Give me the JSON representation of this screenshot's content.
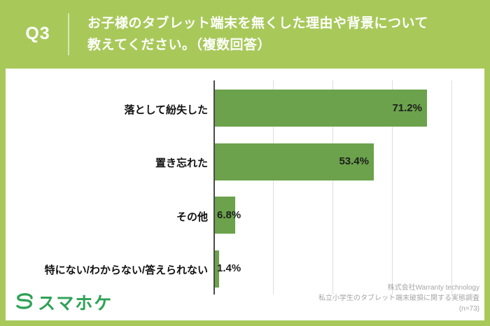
{
  "header": {
    "q_label": "Q3",
    "title_line1": "お子様のタブレット端末を無くした理由や背景について",
    "title_line2": "教えてください。（複数回答）"
  },
  "chart_data": {
    "type": "bar",
    "orientation": "horizontal",
    "title": "お子様のタブレット端末を無くした理由や背景について教えてください。（複数回答）",
    "categories": [
      "落として紛失した",
      "置き忘れた",
      "その他",
      "特にない/わからない/答えられない"
    ],
    "values": [
      71.2,
      53.4,
      6.8,
      1.4
    ],
    "value_labels": [
      "71.2%",
      "53.4%",
      "6.8%",
      "1.4%"
    ],
    "xlim": [
      0,
      80
    ],
    "gridlines_percent": [
      20,
      40,
      60,
      80
    ],
    "grid": true,
    "legend": false,
    "n": 73
  },
  "footer": {
    "logo_text": "スマホケ",
    "attribution_line1": "株式会社Warranty technology",
    "attribution_line2": "私立小学生のタブレット端末破損に関する実態調査",
    "attribution_line3": "(n=73)"
  },
  "colors": {
    "frame_green": "#a8c95a",
    "bar_green": "#6ba24b",
    "logo_green": "#2fa257",
    "axis_dark": "#4a4a4a",
    "gridline_gray": "#dedede"
  }
}
